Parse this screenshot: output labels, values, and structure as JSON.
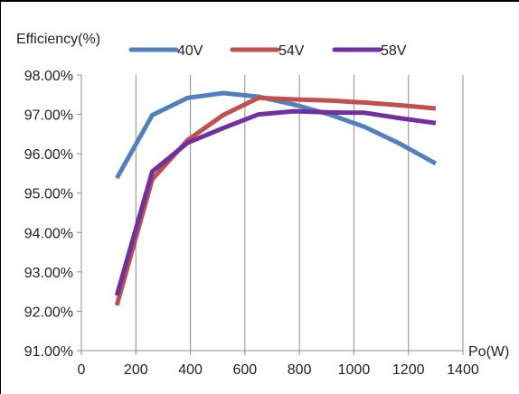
{
  "chart_data": {
    "type": "line",
    "ylabel": "Efficiency(%)",
    "xlabel": "Po(W)",
    "xlim": [
      0,
      1400
    ],
    "ylim": [
      91,
      98
    ],
    "x_ticks": [
      "0",
      "200",
      "400",
      "600",
      "800",
      "1000",
      "1200",
      "1400"
    ],
    "y_ticks": [
      "91.00%",
      "92.00%",
      "93.00%",
      "94.00%",
      "95.00%",
      "96.00%",
      "97.00%",
      "98.00%"
    ],
    "grid": "vertical",
    "legend_position": "top",
    "series": [
      {
        "name": "40V",
        "color": "#4f81bd",
        "points": [
          [
            130,
            95.38
          ],
          [
            260,
            96.98
          ],
          [
            390,
            97.42
          ],
          [
            520,
            97.54
          ],
          [
            650,
            97.45
          ],
          [
            780,
            97.25
          ],
          [
            910,
            97.0
          ],
          [
            1040,
            96.68
          ],
          [
            1170,
            96.25
          ],
          [
            1300,
            95.75
          ]
        ]
      },
      {
        "name": "54V",
        "color": "#c0504d",
        "points": [
          [
            130,
            92.15
          ],
          [
            260,
            95.35
          ],
          [
            390,
            96.35
          ],
          [
            520,
            96.98
          ],
          [
            650,
            97.42
          ],
          [
            780,
            97.38
          ],
          [
            910,
            97.35
          ],
          [
            1040,
            97.3
          ],
          [
            1170,
            97.23
          ],
          [
            1300,
            97.15
          ]
        ]
      },
      {
        "name": "58V",
        "color": "#7030a0",
        "points": [
          [
            130,
            92.4
          ],
          [
            260,
            95.55
          ],
          [
            390,
            96.28
          ],
          [
            520,
            96.65
          ],
          [
            650,
            97.0
          ],
          [
            780,
            97.08
          ],
          [
            910,
            97.05
          ],
          [
            1040,
            97.04
          ],
          [
            1170,
            96.9
          ],
          [
            1300,
            96.78
          ]
        ]
      }
    ]
  }
}
